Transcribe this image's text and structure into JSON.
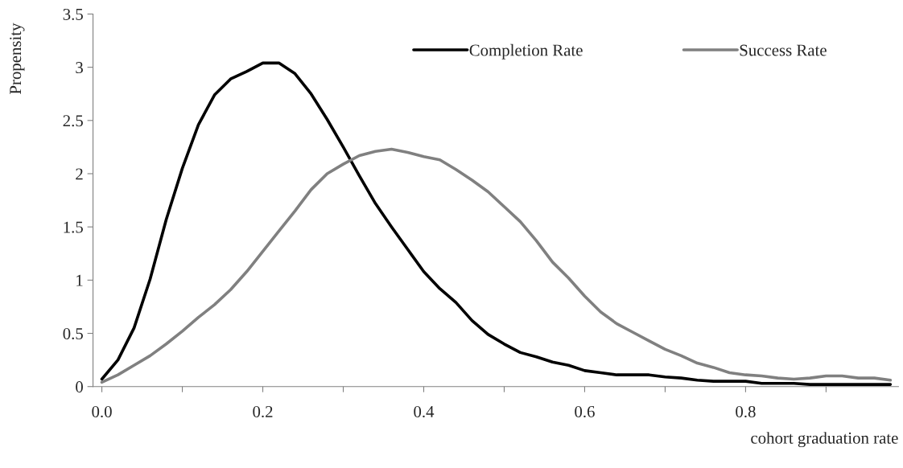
{
  "chart_data": {
    "type": "line",
    "xlabel": "cohort graduation rate",
    "ylabel": "Propensity",
    "x": [
      0.0,
      0.02,
      0.04,
      0.06,
      0.08,
      0.1,
      0.12,
      0.14,
      0.16,
      0.18,
      0.2,
      0.22,
      0.24,
      0.26,
      0.28,
      0.3,
      0.32,
      0.34,
      0.36,
      0.38,
      0.4,
      0.42,
      0.44,
      0.46,
      0.48,
      0.5,
      0.52,
      0.54,
      0.56,
      0.58,
      0.6,
      0.62,
      0.64,
      0.66,
      0.68,
      0.7,
      0.72,
      0.74,
      0.76,
      0.78,
      0.8,
      0.82,
      0.84,
      0.86,
      0.88,
      0.9,
      0.92,
      0.94,
      0.96,
      0.98
    ],
    "series": [
      {
        "name": "Completion Rate",
        "color": "#000000",
        "values": [
          0.07,
          0.25,
          0.55,
          1.01,
          1.57,
          2.05,
          2.46,
          2.74,
          2.89,
          2.96,
          3.04,
          3.04,
          2.94,
          2.75,
          2.51,
          2.25,
          1.98,
          1.72,
          1.5,
          1.29,
          1.08,
          0.92,
          0.79,
          0.62,
          0.49,
          0.4,
          0.32,
          0.28,
          0.23,
          0.2,
          0.15,
          0.13,
          0.11,
          0.11,
          0.11,
          0.09,
          0.08,
          0.06,
          0.05,
          0.05,
          0.05,
          0.03,
          0.03,
          0.03,
          0.02,
          0.02,
          0.02,
          0.02,
          0.02,
          0.02
        ]
      },
      {
        "name": "Success Rate",
        "color": "#808080",
        "values": [
          0.04,
          0.11,
          0.2,
          0.29,
          0.4,
          0.52,
          0.65,
          0.77,
          0.91,
          1.08,
          1.27,
          1.46,
          1.65,
          1.85,
          2.0,
          2.09,
          2.17,
          2.21,
          2.23,
          2.2,
          2.16,
          2.13,
          2.04,
          1.94,
          1.83,
          1.69,
          1.55,
          1.37,
          1.17,
          1.02,
          0.85,
          0.7,
          0.59,
          0.51,
          0.43,
          0.35,
          0.29,
          0.22,
          0.18,
          0.13,
          0.11,
          0.1,
          0.08,
          0.07,
          0.08,
          0.1,
          0.1,
          0.08,
          0.08,
          0.06
        ]
      }
    ],
    "xlim": [
      -0.011,
      0.99
    ],
    "xticks": [
      {
        "value": 0,
        "label": "0.0"
      },
      {
        "value": 0.1,
        "label": null
      },
      0.2,
      {
        "value": 0.3,
        "label": null
      },
      0.4,
      {
        "value": 0.5,
        "label": null
      },
      0.6,
      {
        "value": 0.7,
        "label": null
      },
      0.8,
      {
        "value": 0.9,
        "label": null
      }
    ],
    "ylim": [
      0,
      3.5
    ],
    "yticks": [
      0,
      0.5,
      1,
      1.5,
      2,
      2.5,
      3,
      3.5
    ],
    "legend": "top right",
    "grid": false,
    "marker": "none",
    "line_style": "solid"
  }
}
